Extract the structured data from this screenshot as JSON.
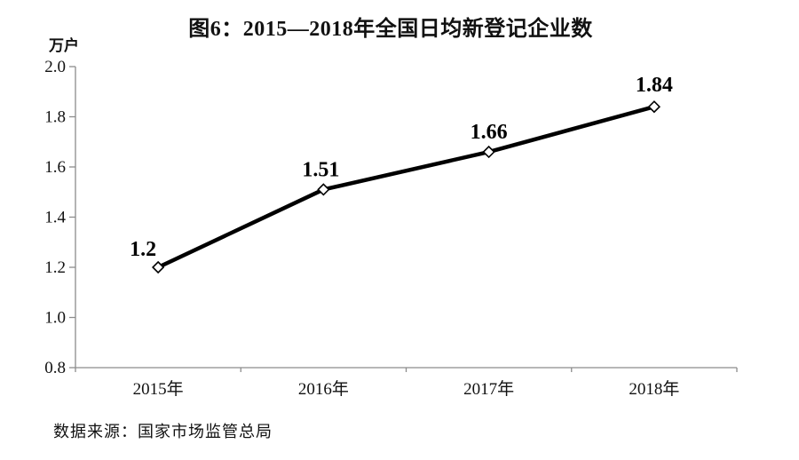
{
  "chart_data": {
    "type": "line",
    "title": "图6：2015—2018年全国日均新登记企业数",
    "unit_label": "万户",
    "categories": [
      "2015年",
      "2016年",
      "2017年",
      "2018年"
    ],
    "values": [
      1.2,
      1.51,
      1.66,
      1.84
    ],
    "point_labels": [
      "1.2",
      "1.51",
      "1.66",
      "1.84"
    ],
    "ylim": [
      0.8,
      2.0
    ],
    "y_ticks": [
      0.8,
      1.0,
      1.2,
      1.4,
      1.6,
      1.8,
      2.0
    ],
    "grid": false,
    "legend": "none",
    "marker": "open-diamond",
    "line_color": "#000000",
    "marker_fill": "#ffffff",
    "axis_color": "#8c8c8c",
    "text_color": "#111111",
    "source": "数据来源：国家市场监管总局"
  }
}
